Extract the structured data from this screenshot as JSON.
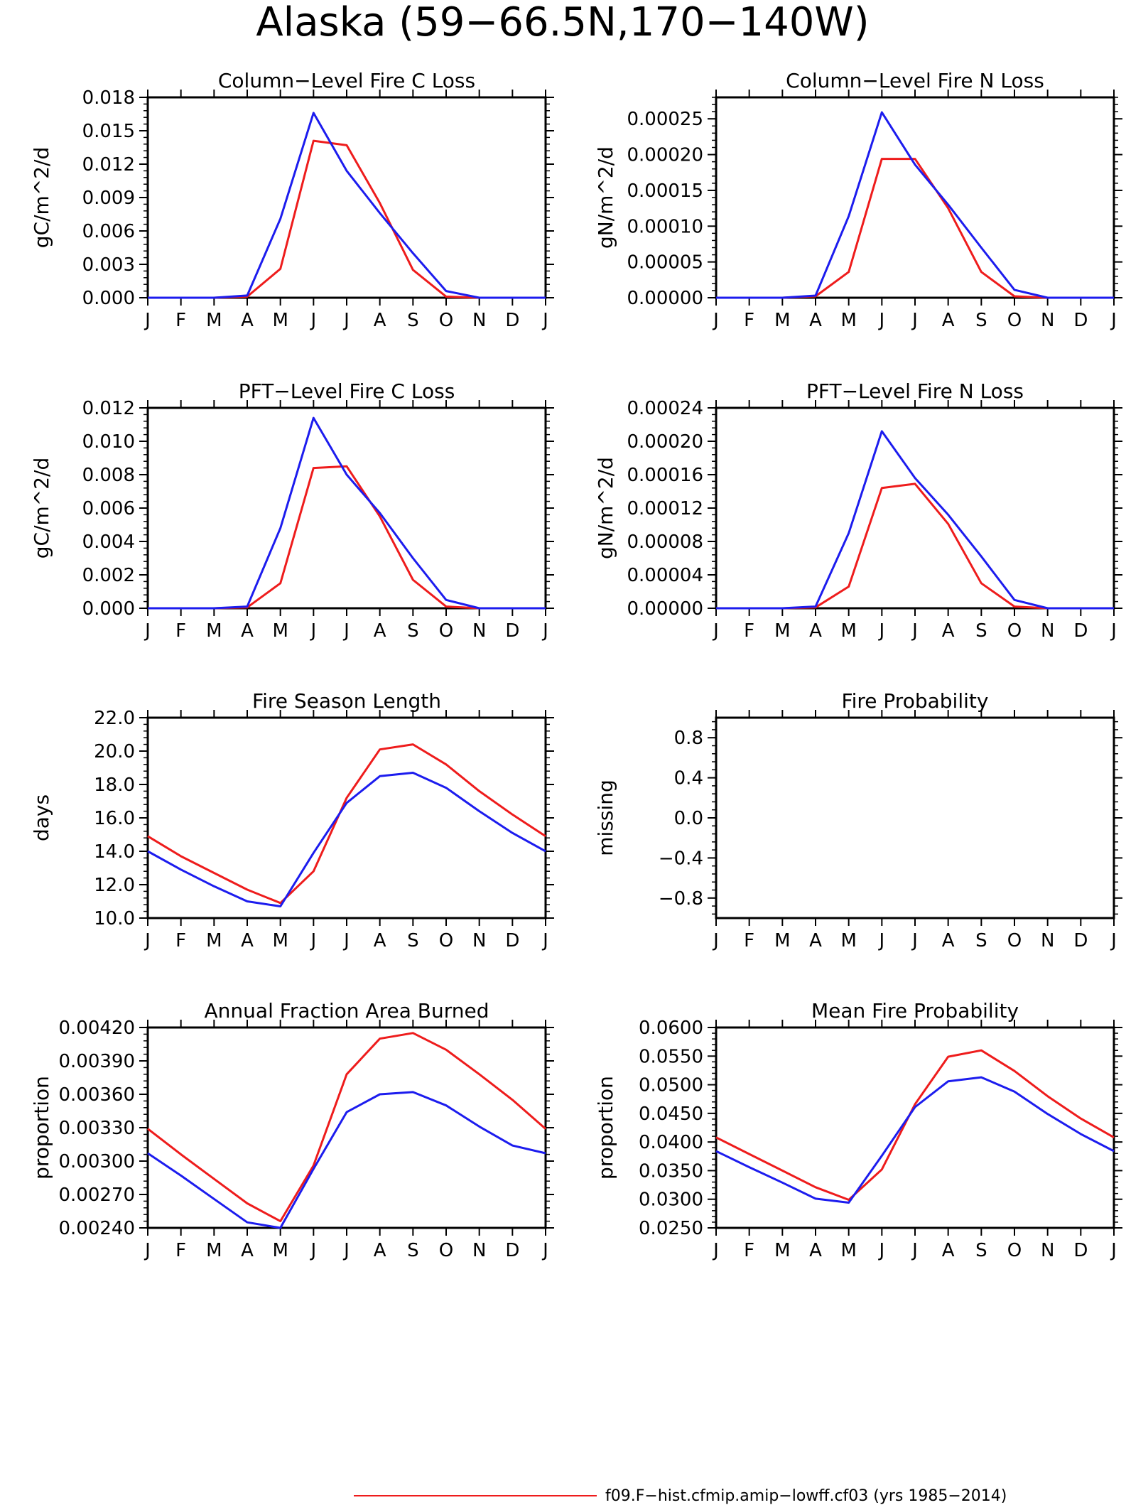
{
  "page": {
    "title": "Alaska (59−66.5N,170−140W)",
    "legend_label": "f09.F−hist.cfmip.amip−lowff.cf03 (yrs 1985−2014)"
  },
  "colors": {
    "series_red": "#ee1c1c",
    "series_blue": "#1c1cee",
    "axis": "#000000"
  },
  "chart_data": [
    {
      "type": "line",
      "title": "Column−Level Fire C Loss",
      "ylabel": "gC/m^2/d",
      "xlabel": "",
      "categories": [
        "J",
        "F",
        "M",
        "A",
        "M",
        "J",
        "J",
        "A",
        "S",
        "O",
        "N",
        "D",
        "J"
      ],
      "ylim": [
        0,
        0.018
      ],
      "yticks": [
        "0.000",
        "0.003",
        "0.006",
        "0.009",
        "0.012",
        "0.015",
        "0.018"
      ],
      "series": [
        {
          "color": "#ee1c1c",
          "values": [
            0,
            0,
            0,
            0.0001,
            0.0026,
            0.0141,
            0.0137,
            0.0085,
            0.0025,
            0.0001,
            0,
            0,
            0
          ]
        },
        {
          "color": "#1c1cee",
          "values": [
            0,
            0,
            0,
            0.0002,
            0.0071,
            0.0166,
            0.0114,
            0.0076,
            0.004,
            0.0006,
            0,
            0,
            0
          ]
        }
      ]
    },
    {
      "type": "line",
      "title": "Column−Level Fire N Loss",
      "ylabel": "gN/m^2/d",
      "xlabel": "",
      "categories": [
        "J",
        "F",
        "M",
        "A",
        "M",
        "J",
        "J",
        "A",
        "S",
        "O",
        "N",
        "D",
        "J"
      ],
      "ylim": [
        0,
        0.00028
      ],
      "yticks": [
        "0.00000",
        "0.00005",
        "0.00010",
        "0.00015",
        "0.00020",
        "0.00025"
      ],
      "series": [
        {
          "color": "#ee1c1c",
          "values": [
            0,
            0,
            0,
            2e-06,
            3.6e-05,
            0.000194,
            0.000194,
            0.000125,
            3.6e-05,
            2e-06,
            0,
            0,
            0
          ]
        },
        {
          "color": "#1c1cee",
          "values": [
            0,
            0,
            0,
            3e-06,
            0.000114,
            0.000259,
            0.000186,
            0.00013,
            7e-05,
            1.1e-05,
            0,
            0,
            0
          ]
        }
      ]
    },
    {
      "type": "line",
      "title": "PFT−Level Fire C Loss",
      "ylabel": "gC/m^2/d",
      "xlabel": "",
      "categories": [
        "J",
        "F",
        "M",
        "A",
        "M",
        "J",
        "J",
        "A",
        "S",
        "O",
        "N",
        "D",
        "J"
      ],
      "ylim": [
        0,
        0.012
      ],
      "yticks": [
        "0.000",
        "0.002",
        "0.004",
        "0.006",
        "0.008",
        "0.010",
        "0.012"
      ],
      "series": [
        {
          "color": "#ee1c1c",
          "values": [
            0,
            0,
            0,
            5e-05,
            0.0015,
            0.0084,
            0.0085,
            0.0055,
            0.0017,
            0.0001,
            0,
            0,
            0
          ]
        },
        {
          "color": "#1c1cee",
          "values": [
            0,
            0,
            0,
            0.0001,
            0.0048,
            0.0114,
            0.008,
            0.0057,
            0.003,
            0.0005,
            0,
            0,
            0
          ]
        }
      ]
    },
    {
      "type": "line",
      "title": "PFT−Level Fire N Loss",
      "ylabel": "gN/m^2/d",
      "xlabel": "",
      "categories": [
        "J",
        "F",
        "M",
        "A",
        "M",
        "J",
        "J",
        "A",
        "S",
        "O",
        "N",
        "D",
        "J"
      ],
      "ylim": [
        0,
        0.00024
      ],
      "yticks": [
        "0.00000",
        "0.00004",
        "0.00008",
        "0.00012",
        "0.00016",
        "0.00020",
        "0.00024"
      ],
      "series": [
        {
          "color": "#ee1c1c",
          "values": [
            0,
            0,
            0,
            1e-06,
            2.6e-05,
            0.000144,
            0.000149,
            0.000101,
            3e-05,
            2e-06,
            0,
            0,
            0
          ]
        },
        {
          "color": "#1c1cee",
          "values": [
            0,
            0,
            0,
            2e-06,
            9e-05,
            0.000212,
            0.000156,
            0.000112,
            6.2e-05,
            1e-05,
            0,
            0,
            0
          ]
        }
      ]
    },
    {
      "type": "line",
      "title": "Fire Season Length",
      "ylabel": "days",
      "xlabel": "",
      "categories": [
        "J",
        "F",
        "M",
        "A",
        "M",
        "J",
        "J",
        "A",
        "S",
        "O",
        "N",
        "D",
        "J"
      ],
      "ylim": [
        10,
        22
      ],
      "yticks": [
        "10.0",
        "12.0",
        "14.0",
        "16.0",
        "18.0",
        "20.0",
        "22.0"
      ],
      "series": [
        {
          "color": "#ee1c1c",
          "values": [
            14.9,
            13.7,
            12.7,
            11.7,
            10.9,
            12.8,
            17.2,
            20.1,
            20.4,
            19.2,
            17.6,
            16.2,
            14.9
          ]
        },
        {
          "color": "#1c1cee",
          "values": [
            14.0,
            12.9,
            11.9,
            11.0,
            10.7,
            13.9,
            16.9,
            18.5,
            18.7,
            17.8,
            16.4,
            15.1,
            14.0
          ]
        }
      ]
    },
    {
      "type": "line",
      "title": "Fire Probability",
      "ylabel": "missing",
      "xlabel": "",
      "categories": [
        "J",
        "F",
        "M",
        "A",
        "M",
        "J",
        "J",
        "A",
        "S",
        "O",
        "N",
        "D",
        "J"
      ],
      "ylim": [
        -1,
        1
      ],
      "yticks": [
        "−0.8",
        "−0.4",
        "0.0",
        "0.4",
        "0.8"
      ],
      "series": []
    },
    {
      "type": "line",
      "title": "Annual Fraction Area Burned",
      "ylabel": "proportion",
      "xlabel": "",
      "categories": [
        "J",
        "F",
        "M",
        "A",
        "M",
        "J",
        "J",
        "A",
        "S",
        "O",
        "N",
        "D",
        "J"
      ],
      "ylim": [
        0.0024,
        0.0042
      ],
      "yticks": [
        "0.00240",
        "0.00270",
        "0.00300",
        "0.00330",
        "0.00360",
        "0.00390",
        "0.00420"
      ],
      "series": [
        {
          "color": "#ee1c1c",
          "values": [
            0.00329,
            0.00306,
            0.00284,
            0.00262,
            0.00246,
            0.00296,
            0.00378,
            0.0041,
            0.00415,
            0.004,
            0.00378,
            0.00355,
            0.00329
          ]
        },
        {
          "color": "#1c1cee",
          "values": [
            0.00307,
            0.00287,
            0.00266,
            0.00245,
            0.0024,
            0.00293,
            0.00344,
            0.0036,
            0.00362,
            0.0035,
            0.00331,
            0.00314,
            0.00307
          ]
        }
      ]
    },
    {
      "type": "line",
      "title": "Mean Fire Probability",
      "ylabel": "proportion",
      "xlabel": "",
      "categories": [
        "J",
        "F",
        "M",
        "A",
        "M",
        "J",
        "J",
        "A",
        "S",
        "O",
        "N",
        "D",
        "J"
      ],
      "ylim": [
        0.025,
        0.06
      ],
      "yticks": [
        "0.0250",
        "0.0300",
        "0.0350",
        "0.0400",
        "0.0450",
        "0.0500",
        "0.0550",
        "0.0600"
      ],
      "series": [
        {
          "color": "#ee1c1c",
          "values": [
            0.0408,
            0.0379,
            0.035,
            0.0321,
            0.0299,
            0.0352,
            0.0466,
            0.0549,
            0.056,
            0.0524,
            0.048,
            0.0441,
            0.0408
          ]
        },
        {
          "color": "#1c1cee",
          "values": [
            0.0384,
            0.0356,
            0.0329,
            0.0301,
            0.0294,
            0.0376,
            0.0461,
            0.0506,
            0.0513,
            0.0488,
            0.0449,
            0.0414,
            0.0384
          ]
        }
      ]
    }
  ]
}
